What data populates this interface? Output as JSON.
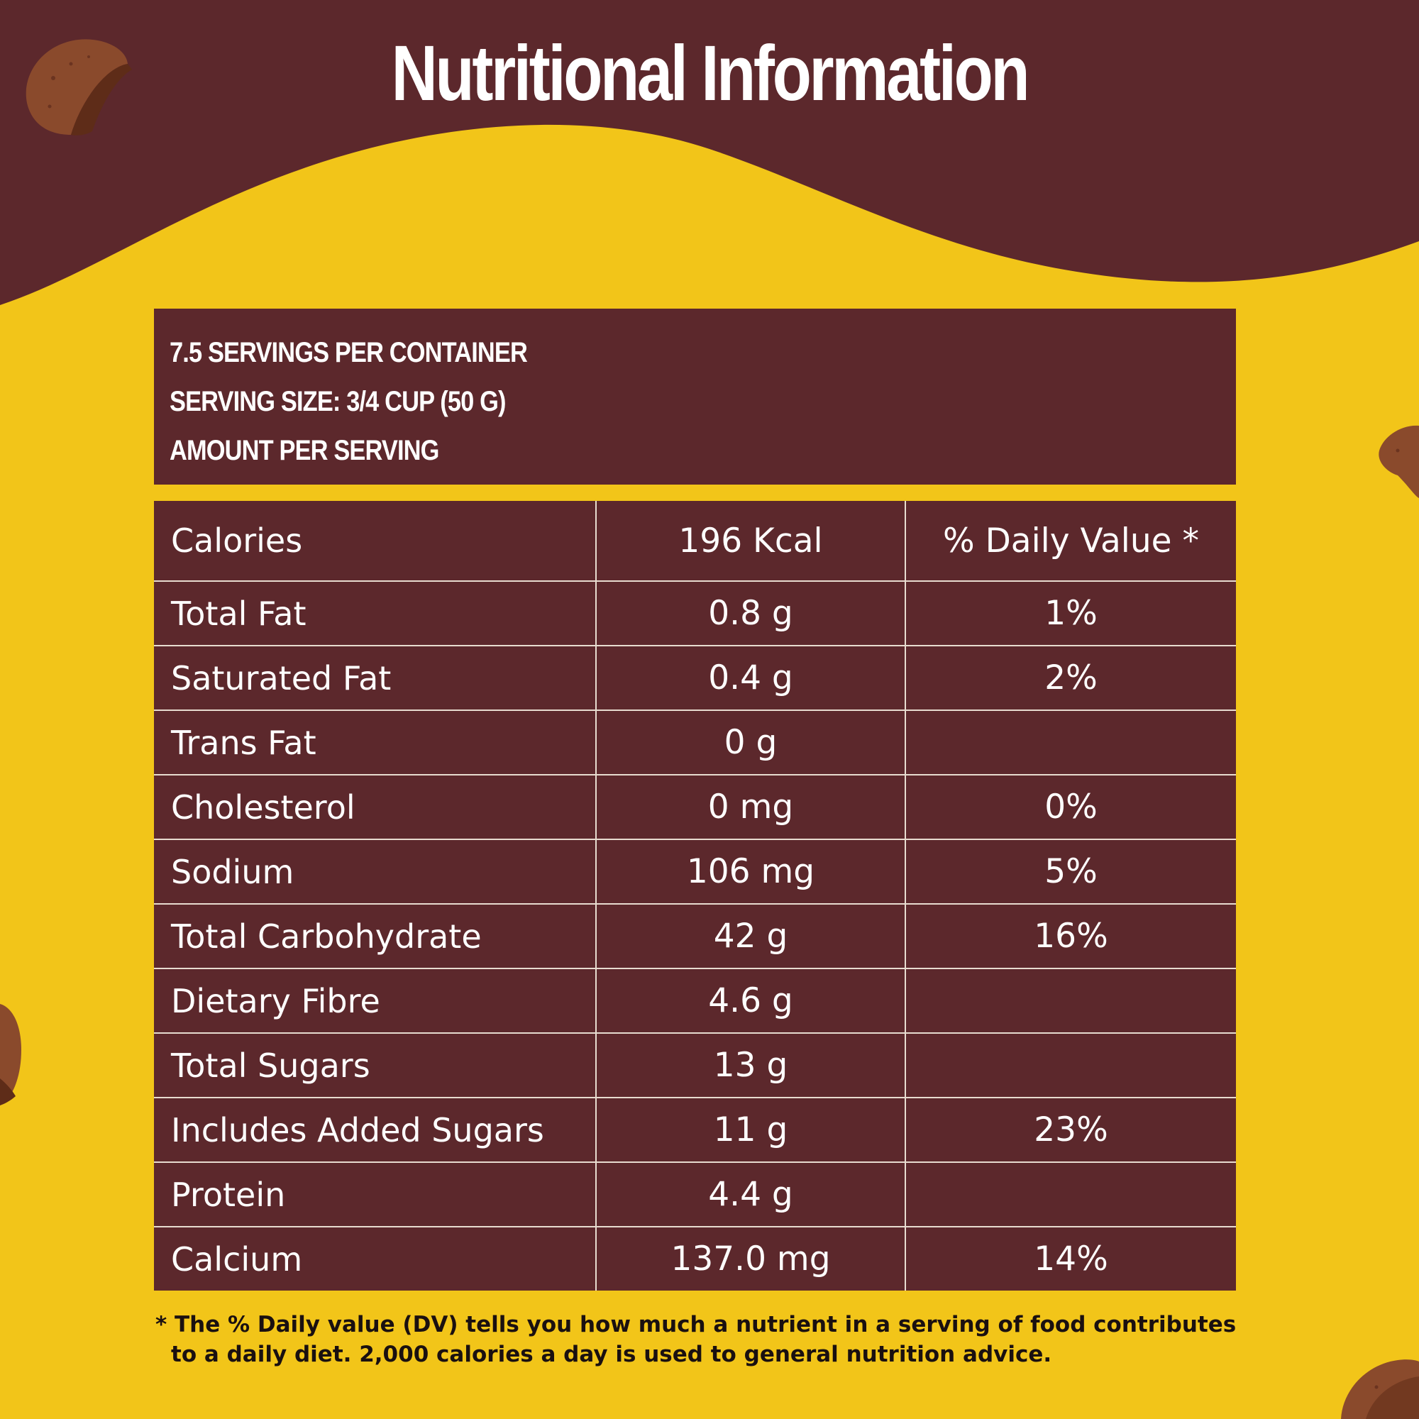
{
  "title": "Nutritional Information",
  "colors": {
    "background": "#f2c519",
    "brown": "#5c282c",
    "text_light": "#ffffff",
    "footnote_text": "#1a1010"
  },
  "serving": {
    "servings_per_container": "7.5 SERVINGS PER CONTAINER",
    "serving_size": "SERVING SIZE: 3/4 CUP (50 G)",
    "amount_per_serving": "AMOUNT PER SERVING"
  },
  "table": {
    "header": {
      "label": "Calories",
      "amount": "196 Kcal",
      "daily_value": "% Daily Value *"
    },
    "rows": [
      {
        "label": "Total Fat",
        "amount": "0.8 g",
        "dv": "1%"
      },
      {
        "label": "Saturated Fat",
        "amount": "0.4 g",
        "dv": "2%"
      },
      {
        "label": "Trans Fat",
        "amount": "0 g",
        "dv": ""
      },
      {
        "label": "Cholesterol",
        "amount": "0 mg",
        "dv": "0%"
      },
      {
        "label": "Sodium",
        "amount": "106 mg",
        "dv": "5%"
      },
      {
        "label": "Total Carbohydrate",
        "amount": "42 g",
        "dv": "16%"
      },
      {
        "label": "Dietary Fibre",
        "amount": "4.6 g",
        "dv": ""
      },
      {
        "label": "Total Sugars",
        "amount": "13 g",
        "dv": ""
      },
      {
        "label": "Includes Added Sugars",
        "amount": "11 g",
        "dv": "23%"
      },
      {
        "label": "Protein",
        "amount": "4.4 g",
        "dv": ""
      },
      {
        "label": "Calcium",
        "amount": "137.0 mg",
        "dv": "14%"
      }
    ]
  },
  "footnote": "* The % Daily value (DV) tells you how much a nutrient in a serving of food contributes to a daily diet. 2,000 calories a day is used to general nutrition advice."
}
